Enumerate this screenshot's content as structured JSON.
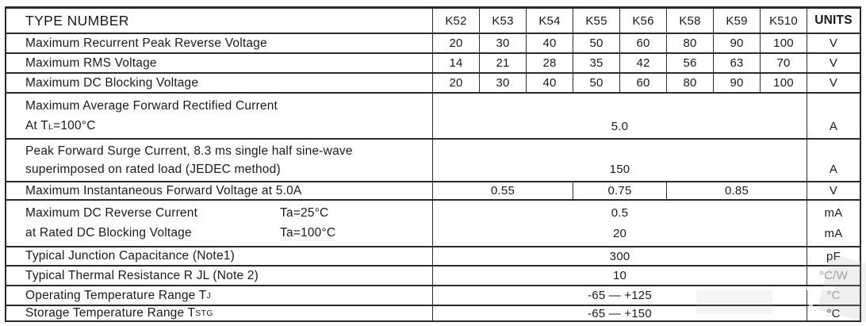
{
  "header": {
    "type_label": "TYPE NUMBER",
    "columns": [
      "K52",
      "K53",
      "K54",
      "K55",
      "K56",
      "K58",
      "K59",
      "K510"
    ],
    "units_label": "UNITS"
  },
  "rows": {
    "vrrm": {
      "label": "Maximum Recurrent Peak Reverse Voltage",
      "values": [
        "20",
        "30",
        "40",
        "50",
        "60",
        "80",
        "90",
        "100"
      ],
      "unit": "V"
    },
    "vrms": {
      "label": "Maximum RMS Voltage",
      "values": [
        "14",
        "21",
        "28",
        "35",
        "42",
        "56",
        "63",
        "70"
      ],
      "unit": "V"
    },
    "vdc": {
      "label": "Maximum DC Blocking Voltage",
      "values": [
        "20",
        "30",
        "40",
        "50",
        "60",
        "80",
        "90",
        "100"
      ],
      "unit": "V"
    },
    "if_avg": {
      "line1": "Maximum Average Forward Rectified Current",
      "line2_pre": "At T",
      "line2_sub": "L",
      "line2_post": "=100°C",
      "value": "5.0",
      "unit": "A"
    },
    "ifsm": {
      "line1": "Peak Forward Surge Current, 8.3 ms single half sine-wave",
      "line2": "superimposed on rated load (JEDEC method)",
      "value": "150",
      "unit": "A"
    },
    "vf": {
      "label": "Maximum Instantaneous Forward Voltage at 5.0A",
      "values": [
        "0.55",
        "0.75",
        "0.85"
      ],
      "unit": "V"
    },
    "ir": {
      "line1": "Maximum DC Reverse Current",
      "line2": "at Rated DC Blocking Voltage",
      "cond1": "Ta=25°C",
      "cond2": "Ta=100°C",
      "value1": "0.5",
      "value2": "20",
      "unit1": "mA",
      "unit2": "mA"
    },
    "cj": {
      "label": "Typical Junction Capacitance (Note1)",
      "value": "300",
      "unit": "pF"
    },
    "rth": {
      "label": "Typical Thermal Resistance R JL (Note 2)",
      "value": "10",
      "unit": "°C/W"
    },
    "tj": {
      "label_pre": "Operating Temperature Range T",
      "label_sub": "J",
      "value": "-65 — +125",
      "unit": "°C"
    },
    "tstg": {
      "label_pre": "Storage Temperature Range T",
      "label_sub": "STG",
      "value": "-65 — +150",
      "unit": "°C"
    }
  },
  "colors": {
    "border": "#2b2b2b",
    "text": "#1a1a1a",
    "faded_unit": "#9e9e9e"
  }
}
